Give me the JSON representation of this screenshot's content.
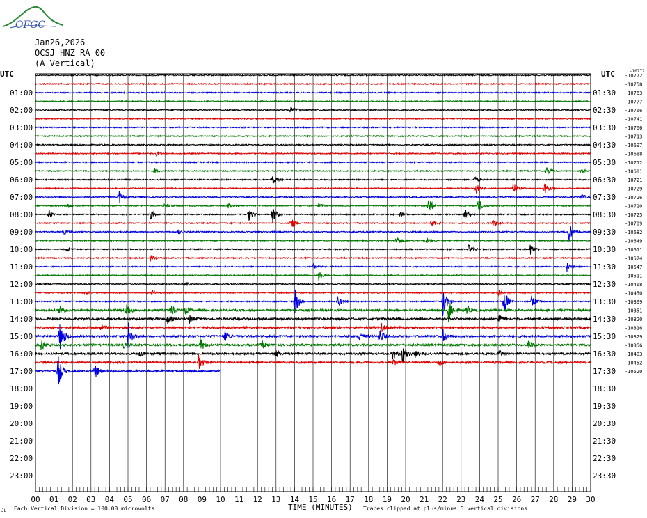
{
  "header": {
    "logo_text": "OFGC",
    "date": "Jan26,2026",
    "station": "OCSJ HNZ RA 00",
    "component": "(A Vertical)"
  },
  "footer": {
    "scale_note": "Each Vertical Division = 100.00 microvolts",
    "xlabel": "TIME (MINUTES)",
    "clip_note": "Traces clipped at plus/minus 5 vertical divisions",
    "corner_mark": "JL"
  },
  "colors": {
    "trace_cycle": [
      "#000000",
      "#dd0000",
      "#0000dd",
      "#007700"
    ],
    "grid": "#000000"
  },
  "chart_data": {
    "type": "line",
    "chart_kind": "helicorder",
    "left_axis_title": "UTC",
    "right_axis_title": "UTC",
    "left_labels": [
      "",
      "01:00",
      "02:00",
      "03:00",
      "04:00",
      "05:00",
      "06:00",
      "07:00",
      "08:00",
      "09:00",
      "10:00",
      "11:00",
      "12:00",
      "13:00",
      "14:00",
      "15:00",
      "16:00",
      "17:00",
      "18:00",
      "19:00",
      "20:00",
      "21:00",
      "22:00",
      "23:00"
    ],
    "right_labels": [
      "",
      "01:30",
      "02:30",
      "03:30",
      "04:30",
      "05:30",
      "06:30",
      "07:30",
      "08:30",
      "09:30",
      "10:30",
      "11:30",
      "12:30",
      "13:30",
      "14:30",
      "15:30",
      "16:30",
      "17:30",
      "18:30",
      "19:30",
      "20:30",
      "21:30",
      "22:30",
      "23:30"
    ],
    "x_ticks": [
      "00",
      "01",
      "02",
      "03",
      "04",
      "05",
      "06",
      "07",
      "08",
      "09",
      "10",
      "11",
      "12",
      "13",
      "14",
      "15",
      "16",
      "17",
      "18",
      "19",
      "20",
      "21",
      "22",
      "23",
      "24",
      "25",
      "26",
      "27",
      "28",
      "29",
      "30"
    ],
    "xlim": [
      0,
      30
    ],
    "rows_total": 48,
    "last_row_end_minute": 10,
    "row_offsets": [
      "-10772",
      "-10758",
      "-10763",
      "-10777",
      "-10766",
      "-10741",
      "-10706",
      "-10713",
      "-10697",
      "-10688",
      "-10712",
      "-10681",
      "-10721",
      "-10729",
      "-10726",
      "-10720",
      "-10725",
      "-10709",
      "-10682",
      "-10649",
      "-10611",
      "-10574",
      "-10547",
      "-10511",
      "-10468",
      "-10450",
      "-10399",
      "-10351",
      "-10320",
      "-10316",
      "-10329",
      "-10356",
      "-10403",
      "-10452",
      "-10520"
    ],
    "top_right_small": "-10772",
    "events": [
      {
        "row": 4,
        "minute": 13.8,
        "amp": 0.7
      },
      {
        "row": 9,
        "minute": 6.5,
        "amp": 0.2
      },
      {
        "row": 11,
        "minute": 6.4,
        "amp": 0.3
      },
      {
        "row": 11,
        "minute": 27.6,
        "amp": 0.5
      },
      {
        "row": 11,
        "minute": 29.5,
        "amp": 0.3
      },
      {
        "row": 12,
        "minute": 12.8,
        "amp": 0.6
      },
      {
        "row": 12,
        "minute": 23.7,
        "amp": 0.4
      },
      {
        "row": 13,
        "minute": 23.8,
        "amp": 0.6
      },
      {
        "row": 13,
        "minute": 25.8,
        "amp": 0.8
      },
      {
        "row": 13,
        "minute": 27.5,
        "amp": 0.9
      },
      {
        "row": 14,
        "minute": 4.5,
        "amp": 0.9
      },
      {
        "row": 14,
        "minute": 29.5,
        "amp": 0.4
      },
      {
        "row": 15,
        "minute": 1.7,
        "amp": 0.3
      },
      {
        "row": 15,
        "minute": 7.0,
        "amp": 0.4
      },
      {
        "row": 15,
        "minute": 10.4,
        "amp": 0.4
      },
      {
        "row": 15,
        "minute": 15.3,
        "amp": 0.3
      },
      {
        "row": 15,
        "minute": 21.2,
        "amp": 1.2
      },
      {
        "row": 15,
        "minute": 23.9,
        "amp": 0.9
      },
      {
        "row": 16,
        "minute": 0.7,
        "amp": 0.5
      },
      {
        "row": 16,
        "minute": 6.2,
        "amp": 0.5
      },
      {
        "row": 16,
        "minute": 11.5,
        "amp": 0.8
      },
      {
        "row": 16,
        "minute": 12.8,
        "amp": 1.0
      },
      {
        "row": 16,
        "minute": 19.7,
        "amp": 0.3
      },
      {
        "row": 16,
        "minute": 23.2,
        "amp": 0.7
      },
      {
        "row": 17,
        "minute": 13.8,
        "amp": 0.7
      },
      {
        "row": 17,
        "minute": 21.4,
        "amp": 0.5
      },
      {
        "row": 17,
        "minute": 24.7,
        "amp": 0.6
      },
      {
        "row": 18,
        "minute": 1.5,
        "amp": 0.3
      },
      {
        "row": 18,
        "minute": 7.7,
        "amp": 0.3
      },
      {
        "row": 18,
        "minute": 28.8,
        "amp": 1.3
      },
      {
        "row": 19,
        "minute": 21.1,
        "amp": 0.3
      },
      {
        "row": 19,
        "minute": 19.5,
        "amp": 0.7
      },
      {
        "row": 20,
        "minute": 1.7,
        "amp": 0.3
      },
      {
        "row": 20,
        "minute": 23.4,
        "amp": 0.5
      },
      {
        "row": 20,
        "minute": 26.7,
        "amp": 0.7
      },
      {
        "row": 21,
        "minute": 6.2,
        "amp": 0.3
      },
      {
        "row": 22,
        "minute": 15.0,
        "amp": 0.3
      },
      {
        "row": 22,
        "minute": 28.7,
        "amp": 0.6
      },
      {
        "row": 23,
        "minute": 15.3,
        "amp": 0.5
      },
      {
        "row": 24,
        "minute": 8.1,
        "amp": 0.3
      },
      {
        "row": 25,
        "minute": 2.7,
        "amp": 0.2
      },
      {
        "row": 25,
        "minute": 6.3,
        "amp": 0.3
      },
      {
        "row": 25,
        "minute": 25.0,
        "amp": 0.3
      },
      {
        "row": 26,
        "minute": 14.0,
        "amp": 1.8
      },
      {
        "row": 26,
        "minute": 16.3,
        "amp": 0.7
      },
      {
        "row": 26,
        "minute": 22.0,
        "amp": 1.8
      },
      {
        "row": 26,
        "minute": 25.3,
        "amp": 1.6
      },
      {
        "row": 26,
        "minute": 26.8,
        "amp": 0.8
      },
      {
        "row": 27,
        "minute": 1.3,
        "amp": 0.7
      },
      {
        "row": 27,
        "minute": 4.9,
        "amp": 0.9
      },
      {
        "row": 27,
        "minute": 7.3,
        "amp": 0.6
      },
      {
        "row": 27,
        "minute": 8.1,
        "amp": 0.4
      },
      {
        "row": 27,
        "minute": 22.3,
        "amp": 1.8
      },
      {
        "row": 27,
        "minute": 23.3,
        "amp": 0.5
      },
      {
        "row": 28,
        "minute": 7.1,
        "amp": 0.6
      },
      {
        "row": 28,
        "minute": 8.3,
        "amp": 0.5
      },
      {
        "row": 28,
        "minute": 25.0,
        "amp": 0.6
      },
      {
        "row": 29,
        "minute": 3.5,
        "amp": 0.5
      },
      {
        "row": 29,
        "minute": 18.7,
        "amp": 0.5
      },
      {
        "row": 30,
        "minute": 1.3,
        "amp": 2.0
      },
      {
        "row": 30,
        "minute": 5.0,
        "amp": 1.8
      },
      {
        "row": 30,
        "minute": 10.2,
        "amp": 0.6
      },
      {
        "row": 30,
        "minute": 17.5,
        "amp": 0.6
      },
      {
        "row": 30,
        "minute": 18.6,
        "amp": 0.9
      },
      {
        "row": 30,
        "minute": 22.0,
        "amp": 0.8
      },
      {
        "row": 31,
        "minute": 0.3,
        "amp": 0.7
      },
      {
        "row": 31,
        "minute": 4.7,
        "amp": 0.4
      },
      {
        "row": 31,
        "minute": 8.9,
        "amp": 0.8
      },
      {
        "row": 31,
        "minute": 12.2,
        "amp": 0.5
      },
      {
        "row": 31,
        "minute": 26.6,
        "amp": 0.6
      },
      {
        "row": 32,
        "minute": 5.6,
        "amp": 0.4
      },
      {
        "row": 32,
        "minute": 13.0,
        "amp": 0.5
      },
      {
        "row": 32,
        "minute": 19.3,
        "amp": 0.7
      },
      {
        "row": 32,
        "minute": 19.8,
        "amp": 1.4
      },
      {
        "row": 32,
        "minute": 20.5,
        "amp": 0.4
      },
      {
        "row": 32,
        "minute": 25.0,
        "amp": 0.5
      },
      {
        "row": 33,
        "minute": 8.8,
        "amp": 0.8
      },
      {
        "row": 33,
        "minute": 19.3,
        "amp": 0.4
      },
      {
        "row": 33,
        "minute": 21.8,
        "amp": 0.4
      },
      {
        "row": 34,
        "minute": 1.2,
        "amp": 2.0
      },
      {
        "row": 34,
        "minute": 3.2,
        "amp": 0.9
      }
    ]
  }
}
